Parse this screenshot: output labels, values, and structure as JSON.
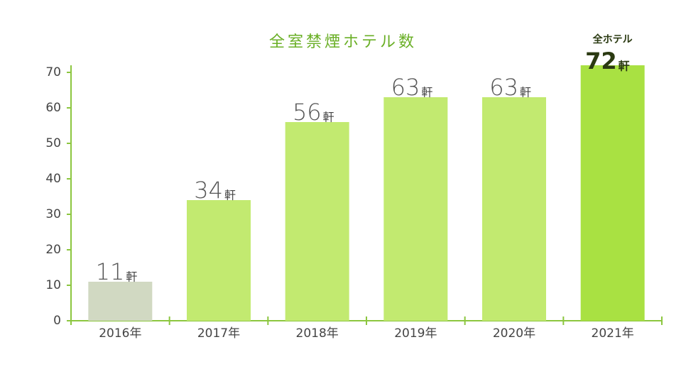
{
  "chart_data": {
    "type": "bar",
    "title": "全室禁煙ホテル数",
    "categories": [
      "2016年",
      "2017年",
      "2018年",
      "2019年",
      "2020年",
      "2021年"
    ],
    "values": [
      11,
      34,
      56,
      63,
      63,
      72
    ],
    "unit": "軒",
    "annotation": "全ホテル",
    "colors": [
      "#d1d9c2",
      "#c2ea70",
      "#c2ea70",
      "#c2ea70",
      "#c2ea70",
      "#a9e142"
    ],
    "ylim": [
      0,
      72
    ],
    "yticks": [
      0,
      10,
      20,
      30,
      40,
      50,
      60,
      70
    ],
    "grid": false
  }
}
